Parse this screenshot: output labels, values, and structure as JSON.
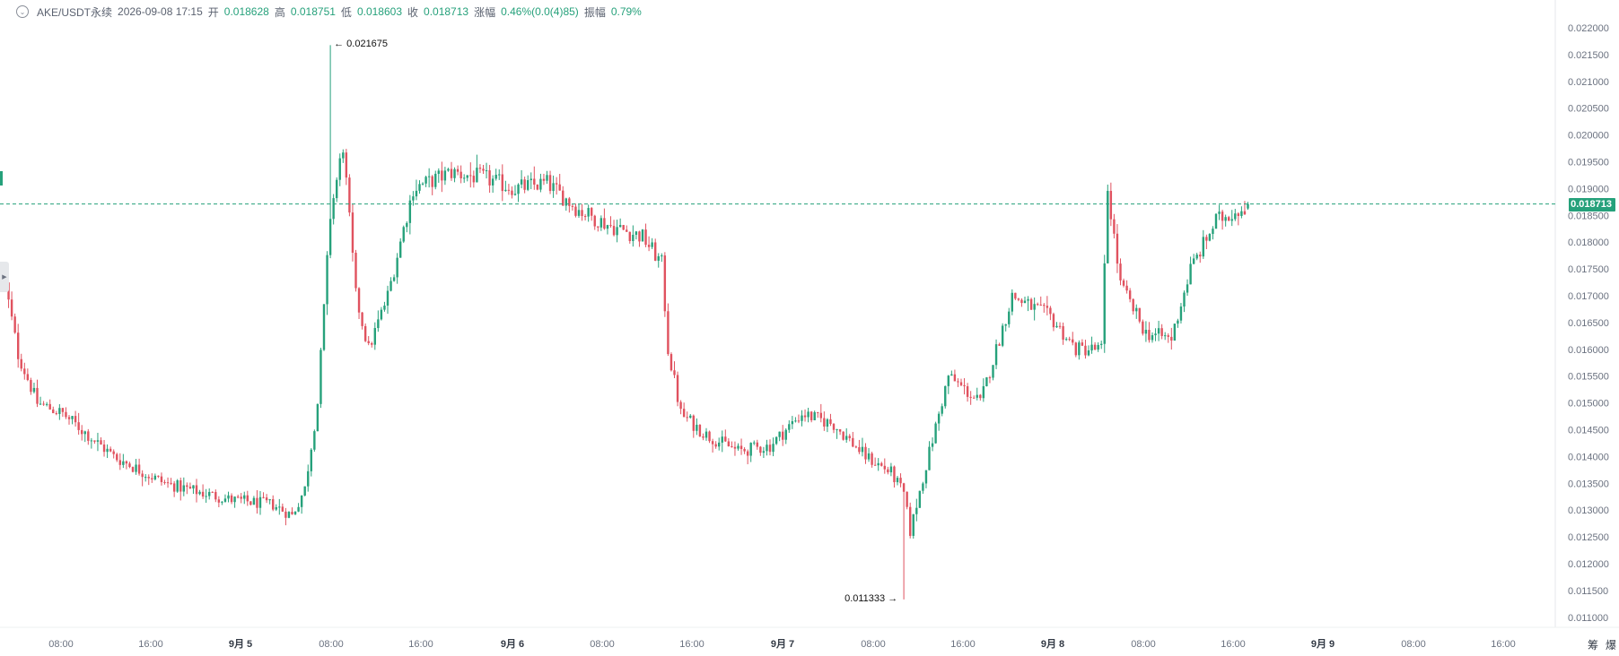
{
  "header": {
    "symbol": "AKE/USDT永续",
    "datetime": "2026-09-08 17:15",
    "open_label": "开",
    "open_value": "0.018628",
    "high_label": "高",
    "high_value": "0.018751",
    "low_label": "低",
    "low_value": "0.018603",
    "close_label": "收",
    "close_value": "0.018713",
    "change_label": "涨幅",
    "change_value": "0.46%(0.0(4)85)",
    "amp_label": "振幅",
    "amp_value": "0.79%"
  },
  "current_price_label": "0.018713",
  "corner": {
    "left": "筹",
    "right": "爆"
  },
  "colors": {
    "up": "#26a17b",
    "down": "#e0525f",
    "price_line": "#26a17b"
  },
  "chart_data": {
    "type": "candlestick",
    "interval_minutes": 15,
    "ylim": [
      0.0108,
      0.0222
    ],
    "y_ticks": [
      "0.011000",
      "0.011500",
      "0.012000",
      "0.012500",
      "0.013000",
      "0.013500",
      "0.014000",
      "0.014500",
      "0.015000",
      "0.015500",
      "0.016000",
      "0.016500",
      "0.017000",
      "0.017500",
      "0.018000",
      "0.018500",
      "0.019000",
      "0.019500",
      "0.020000",
      "0.020500",
      "0.021000",
      "0.021500",
      "0.022000"
    ],
    "x_ticks": [
      {
        "label": "08:00",
        "bold": false
      },
      {
        "label": "16:00",
        "bold": false
      },
      {
        "label": "9月 5",
        "bold": true
      },
      {
        "label": "08:00",
        "bold": false
      },
      {
        "label": "16:00",
        "bold": false
      },
      {
        "label": "9月 6",
        "bold": true
      },
      {
        "label": "08:00",
        "bold": false
      },
      {
        "label": "16:00",
        "bold": false
      },
      {
        "label": "9月 7",
        "bold": true
      },
      {
        "label": "08:00",
        "bold": false
      },
      {
        "label": "16:00",
        "bold": false
      },
      {
        "label": "9月 8",
        "bold": true
      },
      {
        "label": "08:00",
        "bold": false
      },
      {
        "label": "16:00",
        "bold": false
      },
      {
        "label": "9月 9",
        "bold": true
      },
      {
        "label": "08:00",
        "bold": false
      },
      {
        "label": "16:00",
        "bold": false
      }
    ],
    "last_price": 0.018713,
    "high_annotation": {
      "value": 0.021675,
      "label": "0.021675"
    },
    "low_annotation": {
      "value": 0.011333,
      "label": "0.011333"
    },
    "close_path_knots": [
      [
        0,
        0.0172
      ],
      [
        4,
        0.0159
      ],
      [
        10,
        0.015
      ],
      [
        18,
        0.0148
      ],
      [
        26,
        0.0144
      ],
      [
        34,
        0.014
      ],
      [
        50,
        0.0135
      ],
      [
        70,
        0.0132
      ],
      [
        84,
        0.0131
      ],
      [
        90,
        0.0129
      ],
      [
        94,
        0.0134
      ],
      [
        98,
        0.015
      ],
      [
        102,
        0.0185
      ],
      [
        106,
        0.0198
      ],
      [
        110,
        0.017
      ],
      [
        114,
        0.016
      ],
      [
        120,
        0.017
      ],
      [
        128,
        0.019
      ],
      [
        140,
        0.0193
      ],
      [
        150,
        0.0192
      ],
      [
        160,
        0.019
      ],
      [
        170,
        0.0191
      ],
      [
        180,
        0.0186
      ],
      [
        190,
        0.0183
      ],
      [
        200,
        0.0181
      ],
      [
        206,
        0.0176
      ],
      [
        208,
        0.016
      ],
      [
        212,
        0.0148
      ],
      [
        220,
        0.0144
      ],
      [
        230,
        0.0141
      ],
      [
        240,
        0.0142
      ],
      [
        250,
        0.0148
      ],
      [
        260,
        0.0146
      ],
      [
        270,
        0.014
      ],
      [
        278,
        0.0137
      ],
      [
        282,
        0.0133
      ],
      [
        284,
        0.0126
      ],
      [
        288,
        0.0136
      ],
      [
        296,
        0.0155
      ],
      [
        306,
        0.015
      ],
      [
        316,
        0.017
      ],
      [
        328,
        0.0166
      ],
      [
        336,
        0.016
      ],
      [
        344,
        0.016
      ],
      [
        346,
        0.019
      ],
      [
        350,
        0.0172
      ],
      [
        358,
        0.0163
      ],
      [
        366,
        0.0162
      ],
      [
        372,
        0.0175
      ],
      [
        380,
        0.0184
      ],
      [
        390,
        0.0187
      ]
    ]
  }
}
